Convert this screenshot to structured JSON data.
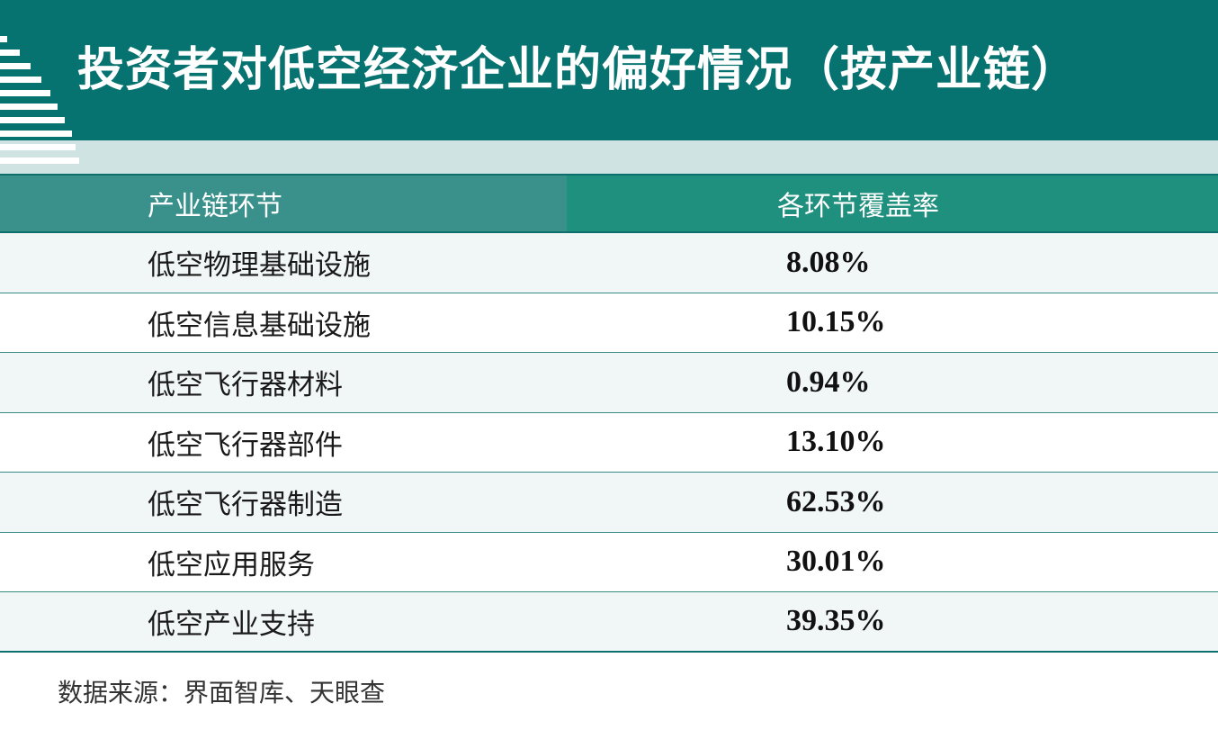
{
  "title": "投资者对低空经济企业的偏好情况（按产业链）",
  "chart_data": {
    "type": "table",
    "columns": [
      "产业链环节",
      "各环节覆盖率"
    ],
    "rows": [
      {
        "category": "低空物理基础设施",
        "value": "8.08%"
      },
      {
        "category": "低空信息基础设施",
        "value": "10.15%"
      },
      {
        "category": "低空飞行器材料",
        "value": "0.94%"
      },
      {
        "category": "低空飞行器部件",
        "value": "13.10%"
      },
      {
        "category": "低空飞行器制造",
        "value": "62.53%"
      },
      {
        "category": "低空应用服务",
        "value": "30.01%"
      },
      {
        "category": "低空产业支持",
        "value": "39.35%"
      }
    ]
  },
  "source": "数据来源：界面智库、天眼查",
  "colors": {
    "header_bg": "#077370",
    "band_bg": "#cfe3e2",
    "th_left_bg": "#3a918c",
    "th_right_bg": "#1f8f7e",
    "row_alt_bg": "#f1f7f6",
    "stripe": "#ffffff"
  },
  "decor_icon": "stepped-stripes-icon"
}
